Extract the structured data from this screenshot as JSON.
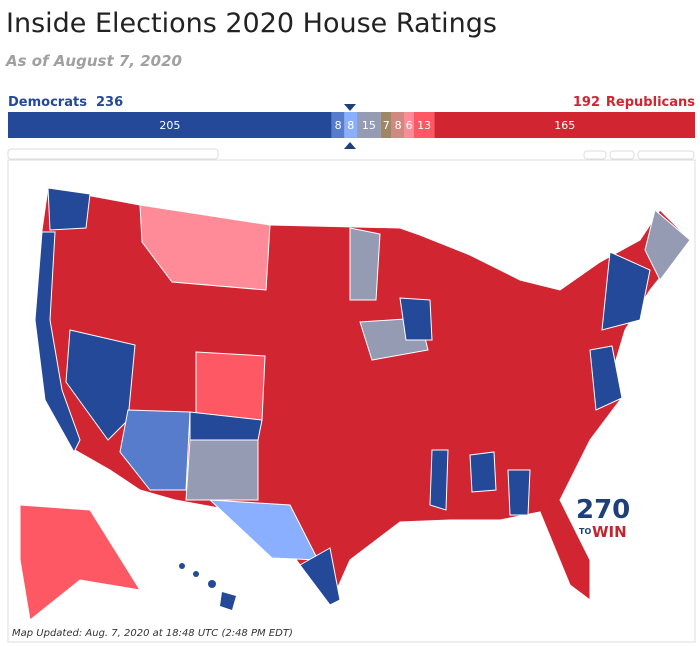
{
  "header": {
    "title": "Inside Elections 2020 House Ratings",
    "subtitle": "As of August 7, 2020"
  },
  "bar": {
    "dem_label": "Democrats",
    "dem_total": 236,
    "rep_total": 192,
    "rep_label": "Republicans",
    "segments": [
      {
        "value": 205,
        "color": "#244999"
      },
      {
        "value": 8,
        "color": "#577ccc"
      },
      {
        "value": 8,
        "color": "#8aafff"
      },
      {
        "value": 15,
        "color": "#949bb3"
      },
      {
        "value": 7,
        "color": "#9e8767"
      },
      {
        "value": 8,
        "color": "#cf8980"
      },
      {
        "value": 6,
        "color": "#ff8b98"
      },
      {
        "value": 13,
        "color": "#ff5865"
      },
      {
        "value": 165,
        "color": "#d22532"
      }
    ]
  },
  "map": {
    "logo_number": "270",
    "logo_to": "TO",
    "logo_win": "WIN",
    "footer": "Map Updated: Aug. 7, 2020 at 18:48 UTC (2:48 PM EDT)"
  }
}
